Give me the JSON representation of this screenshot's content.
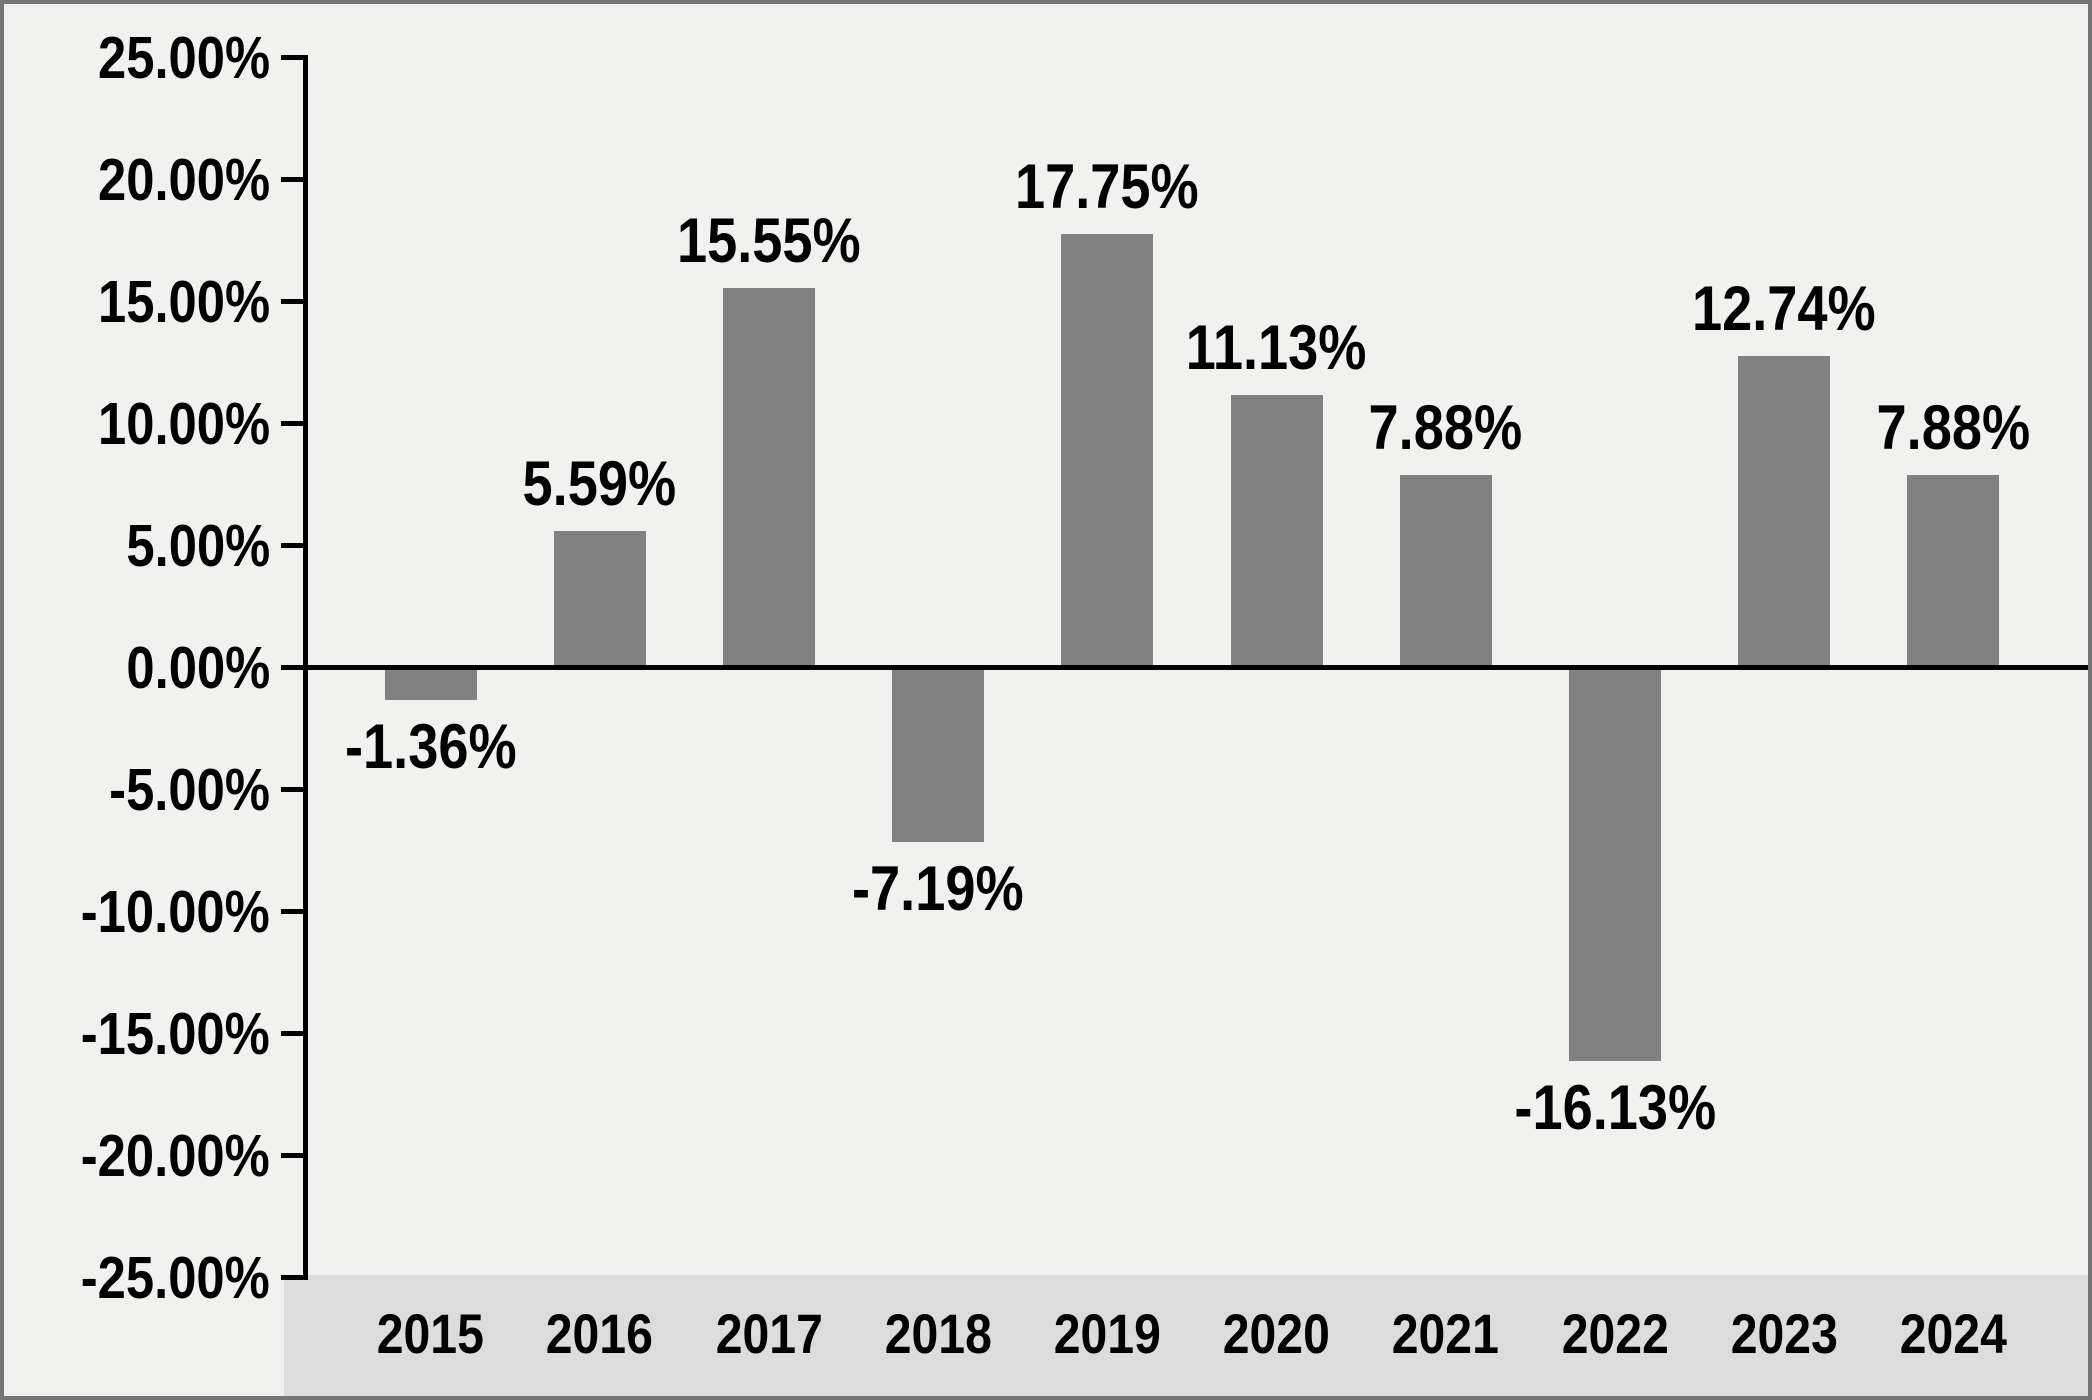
{
  "chart_data": {
    "type": "bar",
    "title": "",
    "xlabel": "",
    "ylabel": "",
    "categories": [
      "2015",
      "2016",
      "2017",
      "2018",
      "2019",
      "2020",
      "2021",
      "2022",
      "2023",
      "2024"
    ],
    "values": [
      -1.36,
      5.59,
      15.55,
      -7.19,
      17.75,
      11.13,
      7.88,
      -16.13,
      12.74,
      7.88
    ],
    "value_labels": [
      "-1.36%",
      "5.59%",
      "15.55%",
      "-7.19%",
      "17.75%",
      "11.13%",
      "7.88%",
      "-16.13%",
      "12.74%",
      "7.88%"
    ],
    "ylim": [
      -25,
      25
    ],
    "y_tick_step": 5,
    "y_ticks": [
      25,
      20,
      15,
      10,
      5,
      0,
      -5,
      -10,
      -15,
      -20,
      -25
    ],
    "y_tick_labels": [
      "25.00%",
      "20.00%",
      "15.00%",
      "10.00%",
      "5.00%",
      "0.00%",
      "-5.00%",
      "-10.00%",
      "-15.00%",
      "-20.00%",
      "-25.00%"
    ],
    "grid": false,
    "legend": null,
    "bar_color": "#818181"
  },
  "colors": {
    "background": "#f1f1ef",
    "xaxis_strip": "#dcdcdc",
    "bar": "#818181",
    "axis_line": "#000000",
    "text": "#000000",
    "frame_border": "#757575"
  }
}
